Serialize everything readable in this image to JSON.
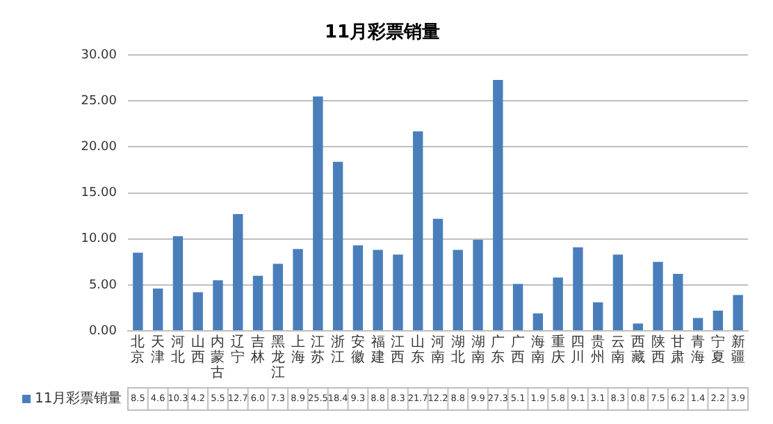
{
  "chart_data": {
    "type": "bar",
    "title": "11月彩票销量",
    "categories": [
      "北京",
      "天津",
      "河北",
      "山西",
      "内蒙古",
      "辽宁",
      "吉林",
      "黑龙江",
      "上海",
      "江苏",
      "浙江",
      "安徽",
      "福建",
      "江西",
      "山东",
      "河南",
      "湖北",
      "湖南",
      "广东",
      "广西",
      "海南",
      "重庆",
      "四川",
      "贵州",
      "云南",
      "西藏",
      "陕西",
      "甘肃",
      "青海",
      "宁夏",
      "新疆"
    ],
    "series": [
      {
        "name": "11月彩票销量",
        "color": "#4a7ebb",
        "values": [
          8.5,
          4.6,
          10.3,
          4.2,
          5.5,
          12.7,
          6.0,
          7.3,
          8.9,
          25.5,
          18.4,
          9.3,
          8.8,
          8.3,
          21.7,
          12.2,
          8.8,
          9.9,
          27.3,
          5.1,
          1.9,
          5.8,
          9.1,
          3.1,
          8.3,
          0.8,
          7.5,
          6.2,
          1.4,
          2.2,
          3.9
        ],
        "value_labels": [
          "8.5",
          "4.6",
          "10.3",
          "4.2",
          "5.5",
          "12.7",
          "6.0",
          "7.3",
          "8.9",
          "25.5",
          "18.4",
          "9.3",
          "8.8",
          "8.3",
          "21.7",
          "12.2",
          "8.8",
          "9.9",
          "27.3",
          "5.1",
          "1.9",
          "5.8",
          "9.1",
          "3.1",
          "8.3",
          "0.8",
          "7.5",
          "6.2",
          "1.4",
          "2.2",
          "3.9"
        ]
      }
    ],
    "ylim": [
      0,
      30
    ],
    "yticks": [
      {
        "value": 0,
        "label": "0.00"
      },
      {
        "value": 5,
        "label": "5.00"
      },
      {
        "value": 10,
        "label": "10.00"
      },
      {
        "value": 15,
        "label": "15.00"
      },
      {
        "value": 20,
        "label": "20.00"
      },
      {
        "value": 25,
        "label": "25.00"
      },
      {
        "value": 30,
        "label": "30.00"
      }
    ],
    "grid": "y",
    "legend": "bottom left"
  }
}
